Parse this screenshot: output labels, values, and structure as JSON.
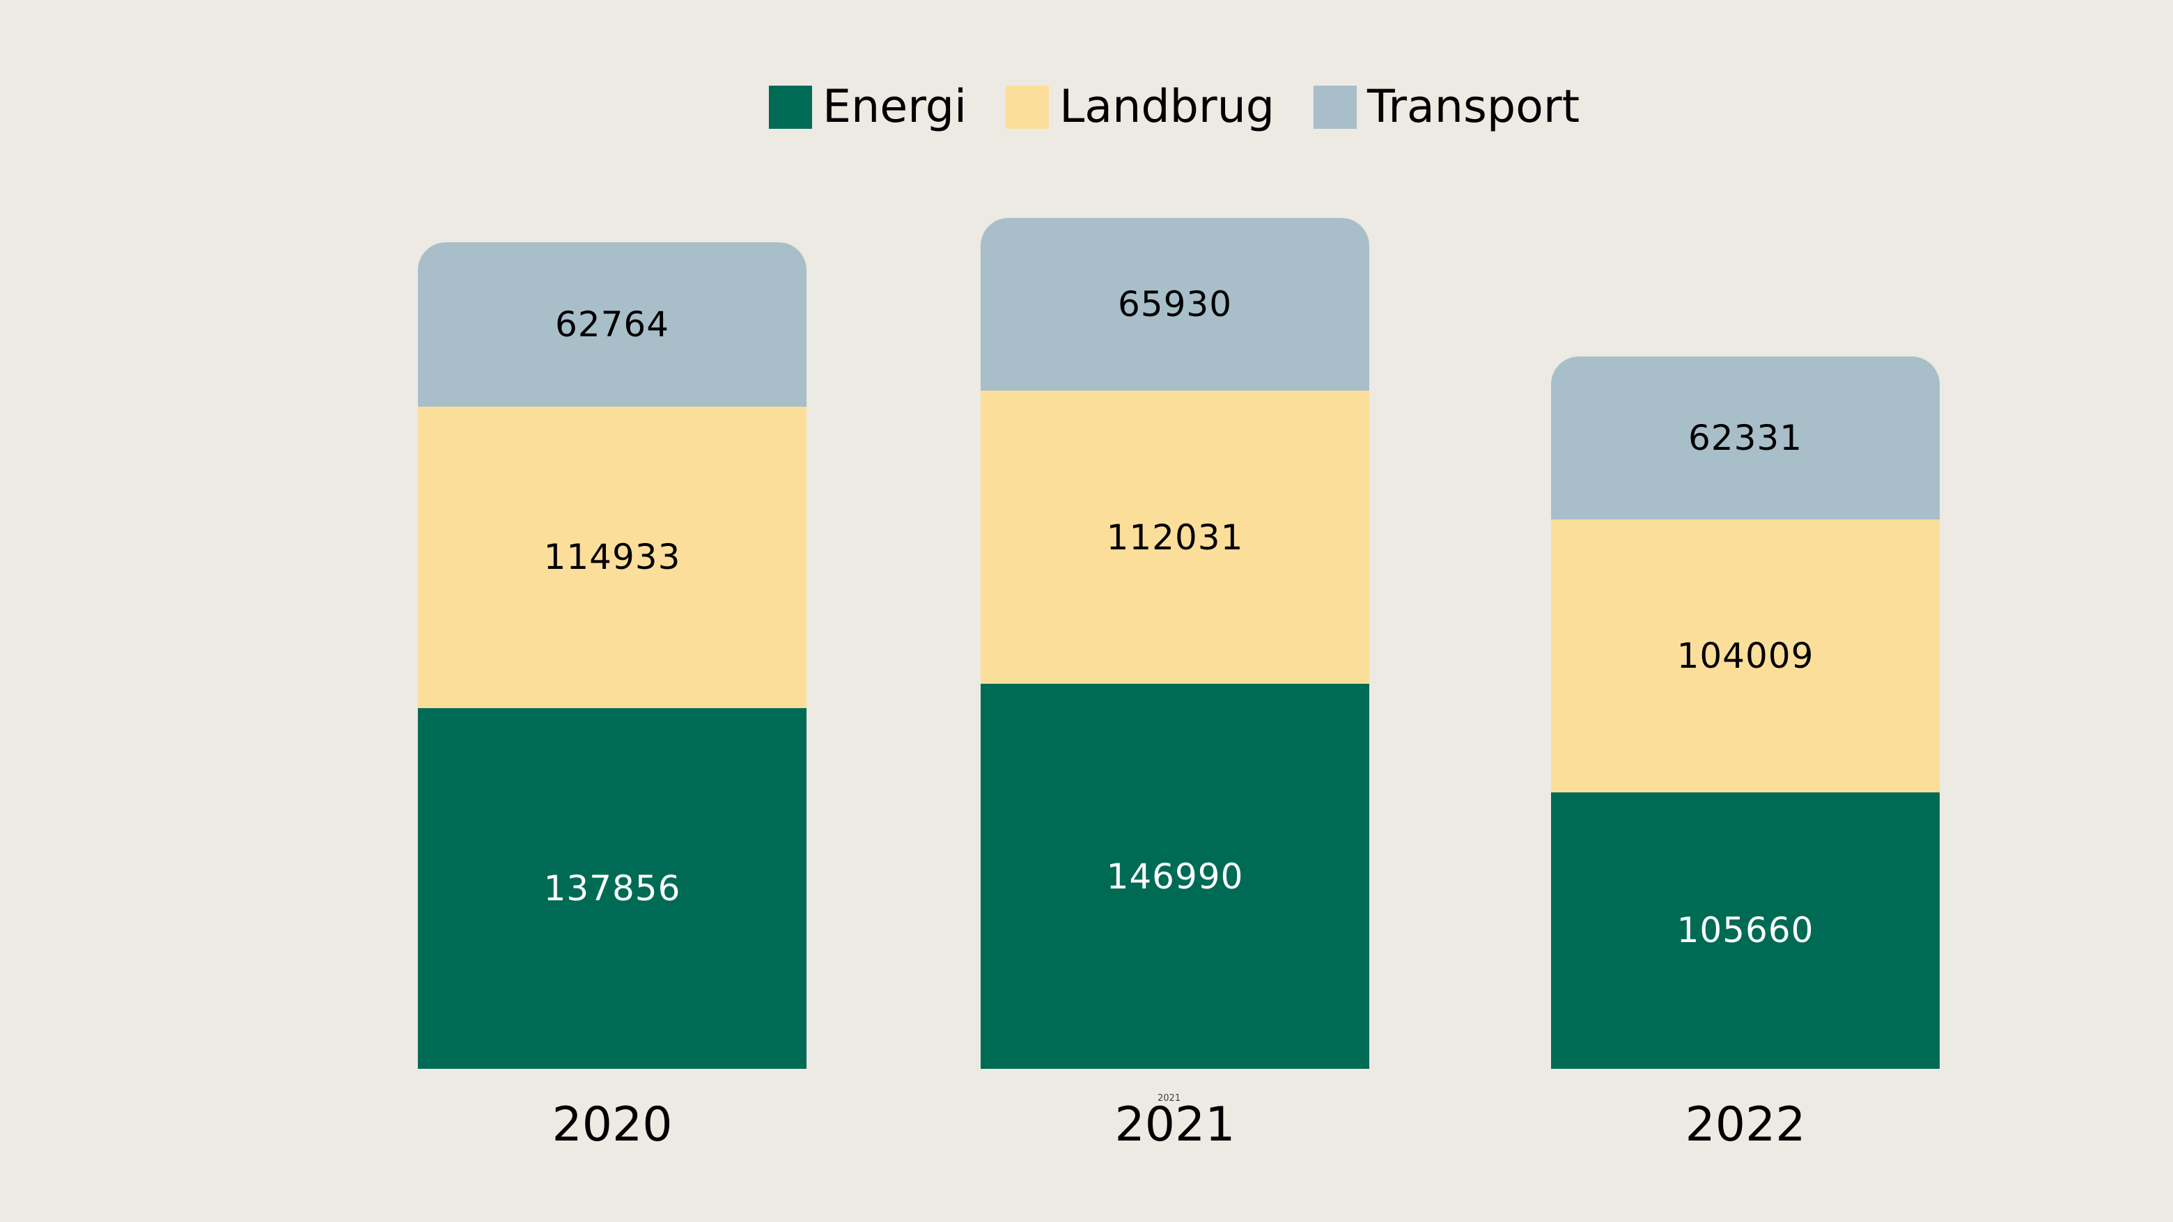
{
  "chart_data": {
    "type": "bar",
    "stacked": true,
    "title": "",
    "categories": [
      "2020",
      "2021",
      "2022"
    ],
    "series": [
      {
        "name": "Energi",
        "color": "#006B54",
        "label_color": "#FFFFFF",
        "values": [
          137856,
          146990,
          105660
        ]
      },
      {
        "name": "Landbrug",
        "color": "#FCDE9B",
        "label_color": "#000000",
        "values": [
          114933,
          112031,
          104009
        ]
      },
      {
        "name": "Transport",
        "color": "#A8BEC9",
        "label_color": "#000000",
        "values": [
          62764,
          65930,
          62331
        ]
      }
    ],
    "legend_position": "top",
    "bar_value_labels_shown": true,
    "background_color": "#EDE9E3",
    "artifact_text": "2021"
  }
}
